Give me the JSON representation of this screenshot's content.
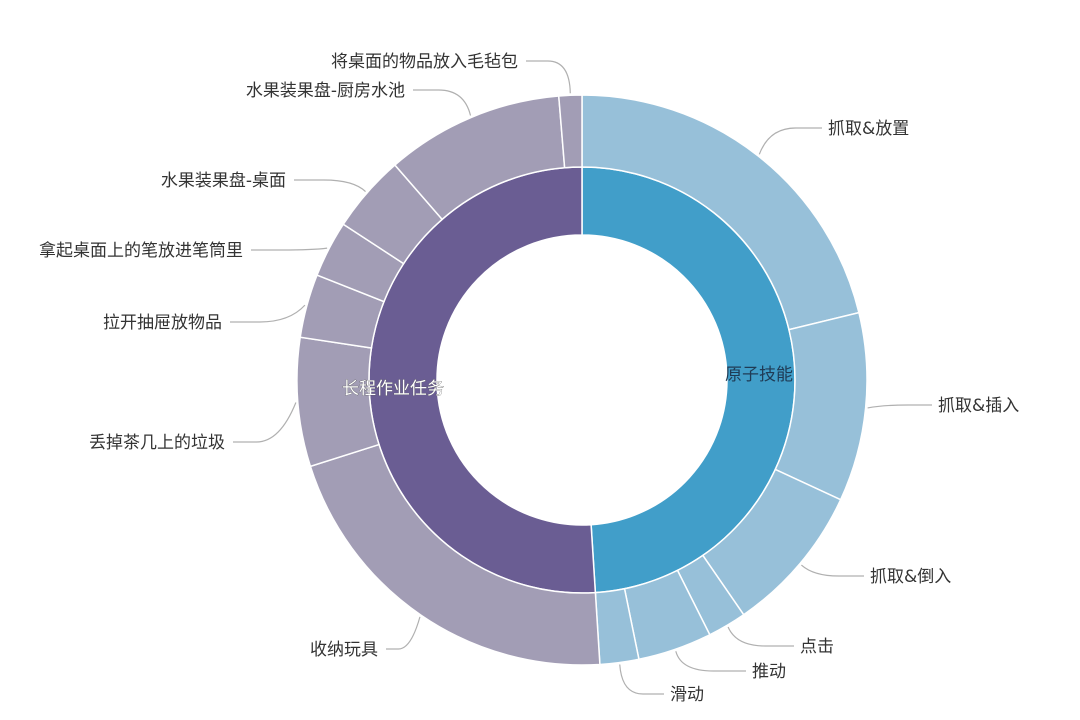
{
  "chart_data": {
    "type": "sunburst",
    "unit": "percent of total (estimated from arc angles)",
    "colors": {
      "inner": {
        "原子技能": "#419ec9",
        "长程作业任务": "#6a5d93"
      },
      "outer": {
        "原子技能": "#97c0d9",
        "长程作业任务": "#a29db5"
      },
      "separator": "#ffffff",
      "leader": "#b0b0b0"
    },
    "groups": [
      {
        "name": "原子技能",
        "value": 49.0,
        "children": [
          {
            "name": "抓取&放置",
            "value": 21.2
          },
          {
            "name": "抓取&插入",
            "value": 10.7
          },
          {
            "name": "抓取&倒入",
            "value": 8.5
          },
          {
            "name": "点击",
            "value": 2.2
          },
          {
            "name": "推动",
            "value": 4.2
          },
          {
            "name": "滑动",
            "value": 2.2
          }
        ]
      },
      {
        "name": "长程作业任务",
        "value": 51.0,
        "children": [
          {
            "name": "收纳玩具",
            "value": 21.1
          },
          {
            "name": "丢掉茶几上的垃圾",
            "value": 7.3
          },
          {
            "name": "拉开抽屉放物品",
            "value": 3.6
          },
          {
            "name": "拿起桌面上的笔放进笔筒里",
            "value": 3.2
          },
          {
            "name": "水果装果盘-桌面",
            "value": 4.4
          },
          {
            "name": "水果装果盘-厨房水池",
            "value": 10.1
          },
          {
            "name": "将桌面的物品放入毛毡包",
            "value": 1.3
          }
        ]
      }
    ]
  }
}
